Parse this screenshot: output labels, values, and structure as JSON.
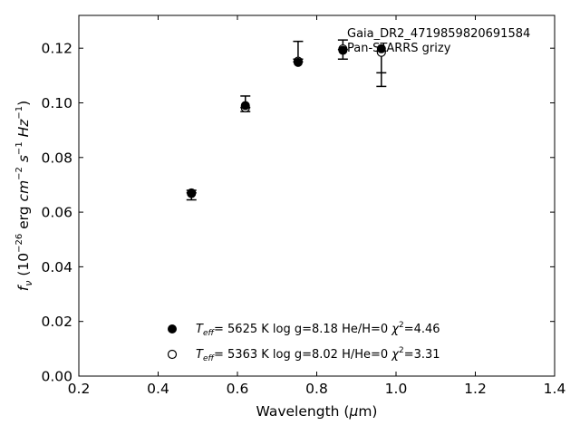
{
  "chart_data": {
    "type": "scatter",
    "xlabel_main": "Wavelength (",
    "xlabel_unit_mu": "μ",
    "xlabel_unit_rest": "m)",
    "ylabel_f": "f",
    "ylabel_sub": "ν",
    "ylabel_open": " (10",
    "ylabel_exp1": "−26",
    "ylabel_erg": " erg ",
    "ylabel_cm": "cm",
    "ylabel_exp2": "−2",
    "ylabel_s": " s",
    "ylabel_exp3": "−1",
    "ylabel_hz": " Hz",
    "ylabel_exp4": "−1",
    "ylabel_close": ")",
    "xlim": [
      0.2,
      1.4
    ],
    "ylim": [
      0.0,
      0.132
    ],
    "xticks": [
      "0.2",
      "0.4",
      "0.6",
      "0.8",
      "1.0",
      "1.2",
      "1.4"
    ],
    "xtick_values": [
      0.2,
      0.4,
      0.6,
      0.8,
      1.0,
      1.2,
      1.4
    ],
    "yticks": [
      "0.00",
      "0.02",
      "0.04",
      "0.06",
      "0.08",
      "0.10",
      "0.12"
    ],
    "ytick_values": [
      0.0,
      0.02,
      0.04,
      0.06,
      0.08,
      0.1,
      0.12
    ],
    "grid": false,
    "annotation_line1": "Gaia_DR2_4719859820691584",
    "annotation_line2": "Pan-STARRS grizy",
    "observed": {
      "x": [
        0.484,
        0.62,
        0.753,
        0.866,
        0.963
      ],
      "y": [
        0.0671,
        0.0983,
        0.116,
        0.1195,
        0.111
      ],
      "yerr_low": [
        0.0645,
        0.0968,
        0.115,
        0.116,
        0.106
      ],
      "yerr_high": [
        0.068,
        0.1025,
        0.1225,
        0.123,
        0.119
      ]
    },
    "series": [
      {
        "marker": "filled",
        "x": [
          0.484,
          0.62,
          0.753,
          0.866,
          0.963
        ],
        "y": [
          0.0668,
          0.099,
          0.1148,
          0.1192,
          0.1198
        ],
        "label": {
          "t": "T",
          "eff": "eff",
          "text1": "=  5625 K  log g=8.18  He/H=0  ",
          "chi": "χ",
          "sq": "2",
          "text2": "=4.46"
        }
      },
      {
        "marker": "open",
        "x": [
          0.484,
          0.62,
          0.753,
          0.866,
          0.963
        ],
        "y": [
          0.067,
          0.0982,
          0.1152,
          0.1197,
          0.1185
        ],
        "label": {
          "t": "T",
          "eff": "eff",
          "text1": "=  5363 K  log g=8.02  H/He=0  ",
          "chi": "χ",
          "sq": "2",
          "text2": "=3.31"
        }
      }
    ],
    "colors": {
      "marker": "#000000",
      "axes": "#000000",
      "background": "#ffffff"
    }
  }
}
